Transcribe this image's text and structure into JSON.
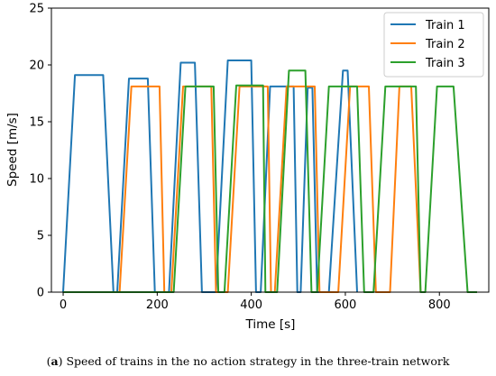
{
  "caption": {
    "label": "a",
    "text": " Speed of trains in the no action strategy in the three-train network"
  },
  "chart_data": {
    "type": "line",
    "xlabel": "Time [s]",
    "ylabel": "Speed [m/s]",
    "xlim": [
      -25,
      905
    ],
    "ylim": [
      0,
      25
    ],
    "xticks": [
      0,
      200,
      400,
      600,
      800
    ],
    "yticks": [
      0,
      5,
      10,
      15,
      20,
      25
    ],
    "grid": false,
    "legend_position": "top-right",
    "series": [
      {
        "name": "Train 1",
        "color": "#1f77b4",
        "x": [
          0,
          25,
          85,
          107,
          115,
          140,
          180,
          195,
          225,
          250,
          280,
          295,
          325,
          350,
          400,
          410,
          420,
          440,
          490,
          498,
          505,
          520,
          530,
          540,
          565,
          595,
          605,
          625
        ],
        "y": [
          0,
          19.1,
          19.1,
          0,
          0,
          18.8,
          18.8,
          0,
          0,
          20.2,
          20.2,
          0,
          0,
          20.4,
          20.4,
          0,
          0,
          18.1,
          18.1,
          0,
          0,
          18.0,
          18.0,
          0,
          0,
          19.5,
          19.5,
          0
        ]
      },
      {
        "name": "Train 2",
        "color": "#ff7f0e",
        "x": [
          0,
          120,
          145,
          205,
          215,
          230,
          255,
          315,
          325,
          350,
          375,
          435,
          442,
          450,
          475,
          535,
          545,
          585,
          610,
          650,
          665,
          695,
          715,
          740,
          760
        ],
        "y": [
          0,
          0,
          18.1,
          18.1,
          0,
          0,
          18.1,
          18.1,
          0,
          0,
          18.1,
          18.1,
          0,
          0,
          18.1,
          18.1,
          0,
          0,
          18.1,
          18.1,
          0,
          0,
          18.1,
          18.1,
          0
        ]
      },
      {
        "name": "Train 3",
        "color": "#2ca02c",
        "x": [
          0,
          235,
          260,
          320,
          330,
          343,
          368,
          425,
          430,
          455,
          480,
          515,
          528,
          540,
          565,
          625,
          640,
          660,
          685,
          750,
          760,
          770,
          795,
          830,
          860,
          880
        ],
        "y": [
          0,
          0,
          18.1,
          18.1,
          0,
          0,
          18.2,
          18.2,
          0,
          0,
          19.5,
          19.5,
          0,
          0,
          18.1,
          18.1,
          0,
          0,
          18.1,
          18.1,
          0,
          0,
          18.1,
          18.1,
          0,
          0
        ]
      }
    ]
  }
}
